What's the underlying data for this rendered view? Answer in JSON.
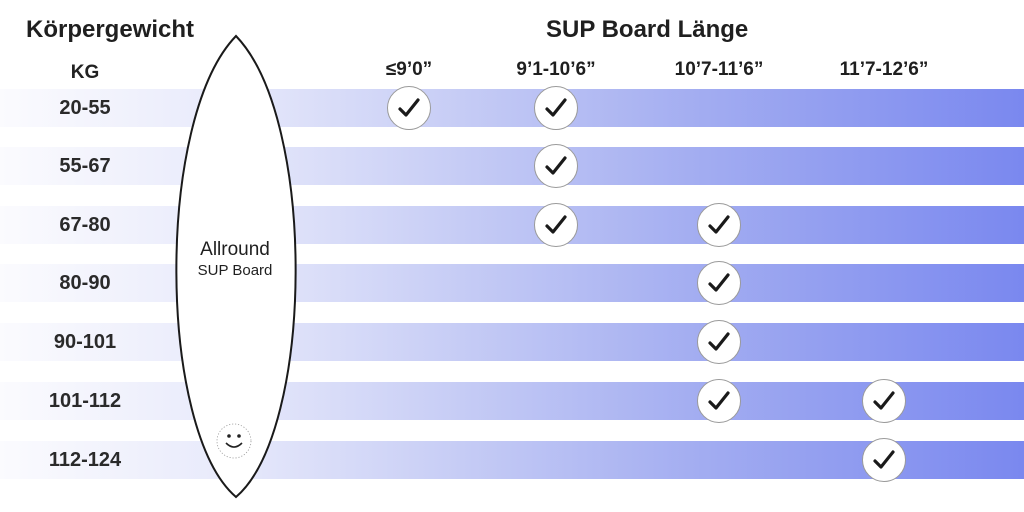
{
  "chart_data": {
    "type": "table",
    "title": "SUP Board Länge",
    "row_header": "Körpergewicht",
    "row_unit": "KG",
    "board": {
      "name": "Allround",
      "subname": "SUP Board"
    },
    "columns": [
      "≤9’0”",
      "9’1-10’6”",
      "10’7-11’6”",
      "11’7-12’6”"
    ],
    "rows": [
      "20-55",
      "55-67",
      "67-80",
      "80-90",
      "90-101",
      "101-112",
      "112-124"
    ],
    "matrix": [
      [
        true,
        true,
        false,
        false
      ],
      [
        false,
        true,
        false,
        false
      ],
      [
        false,
        true,
        true,
        false
      ],
      [
        false,
        false,
        true,
        false
      ],
      [
        false,
        false,
        true,
        false
      ],
      [
        false,
        false,
        true,
        true
      ],
      [
        false,
        false,
        false,
        true
      ]
    ],
    "colors": {
      "band_start": "#fbfbfe",
      "band_end": "#7a88ef",
      "check_mark": "#1a1a1a"
    }
  }
}
